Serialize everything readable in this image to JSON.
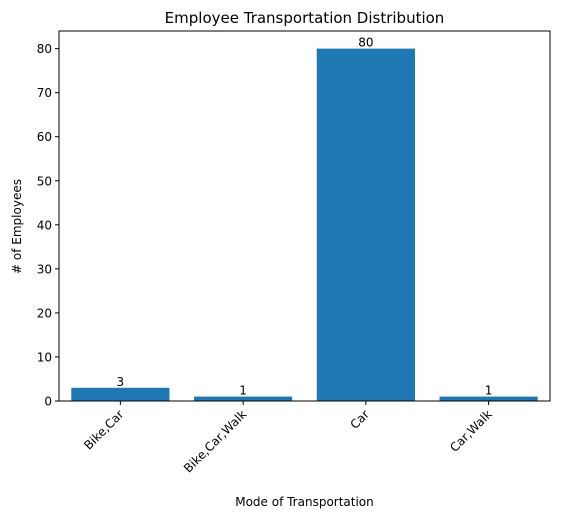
{
  "chart_data": {
    "type": "bar",
    "title": "Employee Transportation Distribution",
    "xlabel": "Mode of Transportation",
    "ylabel": "# of Employees",
    "categories": [
      "Bike,Car",
      "Bike,Car,Walk",
      "Car",
      "Car,Walk"
    ],
    "values": [
      3,
      1,
      80,
      1
    ],
    "ylim": [
      0,
      84
    ],
    "yticks": [
      0,
      10,
      20,
      30,
      40,
      50,
      60,
      70,
      80
    ],
    "grid": false,
    "bar_color": "#1f77b4"
  }
}
